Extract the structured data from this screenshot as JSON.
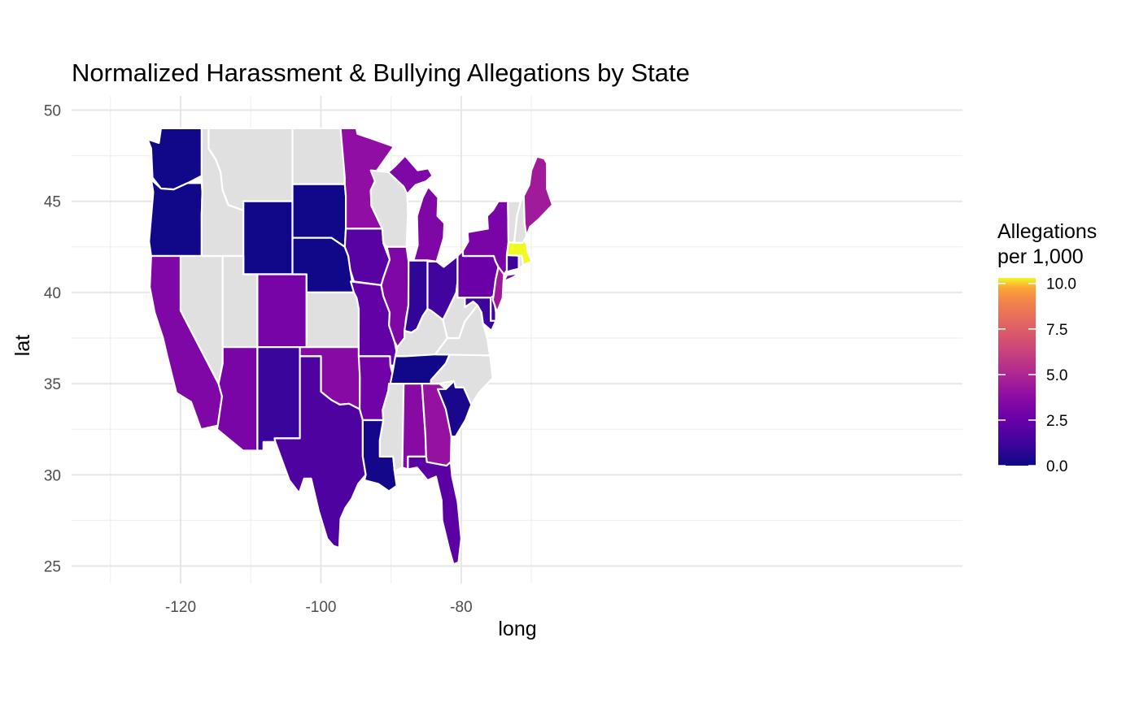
{
  "title": "Normalized Harassment & Bullying Allegations by State",
  "xlabel": "long",
  "ylabel": "lat",
  "x_ticks": [
    {
      "value": -120,
      "label": "-120"
    },
    {
      "value": -100,
      "label": "-100"
    },
    {
      "value": -80,
      "label": "-80"
    }
  ],
  "y_ticks": [
    {
      "value": 25,
      "label": "25"
    },
    {
      "value": 30,
      "label": "30"
    },
    {
      "value": 35,
      "label": "35"
    },
    {
      "value": 40,
      "label": "40"
    },
    {
      "value": 45,
      "label": "45"
    },
    {
      "value": 50,
      "label": "50"
    }
  ],
  "legend": {
    "title_line1": "Allegations",
    "title_line2": "per 1,000",
    "ticks": [
      {
        "value": 0,
        "label": "0.0"
      },
      {
        "value": 2.5,
        "label": "2.5"
      },
      {
        "value": 5,
        "label": "5.0"
      },
      {
        "value": 7.5,
        "label": "7.5"
      },
      {
        "value": 10,
        "label": "10.0"
      }
    ],
    "range": [
      0,
      10.3
    ],
    "palette": "plasma",
    "placement": "right"
  },
  "missing_color": "#e0e0e0",
  "border_color": "#ffffff",
  "chart_data": {
    "type": "choropleth",
    "xlim": [
      -127,
      -63.5
    ],
    "ylim": [
      24.3,
      50.6
    ],
    "grid": true,
    "values": {
      "Washington": 0.1,
      "Oregon": 0.1,
      "California": 3.3,
      "Nevada": null,
      "Idaho": null,
      "Montana": null,
      "Wyoming": 0.1,
      "Utah": null,
      "Colorado": 3.0,
      "Arizona": 3.1,
      "New Mexico": 1.1,
      "North Dakota": null,
      "South Dakota": 0.1,
      "Nebraska": 0.1,
      "Kansas": null,
      "Oklahoma": 3.6,
      "Texas": 1.7,
      "Minnesota": 3.9,
      "Iowa": 2.0,
      "Missouri": 2.3,
      "Arkansas": 2.8,
      "Louisiana": 0.2,
      "Wisconsin": null,
      "Illinois": 3.3,
      "Michigan": 3.3,
      "Indiana": 0.9,
      "Ohio": 1.3,
      "Kentucky": null,
      "Tennessee": 0.1,
      "Mississippi": null,
      "Alabama": 3.6,
      "Georgia": 4.1,
      "Florida": 2.1,
      "South Carolina": 0.3,
      "North Carolina": null,
      "Virginia": null,
      "West Virginia": null,
      "Maryland": 1.2,
      "Delaware": 1.3,
      "Pennsylvania": 2.6,
      "New Jersey": 4.4,
      "New York": 3.1,
      "Connecticut": 1.2,
      "Rhode Island": null,
      "Massachusetts": 10.3,
      "Vermont": null,
      "New Hampshire": null,
      "Maine": 4.5
    }
  }
}
